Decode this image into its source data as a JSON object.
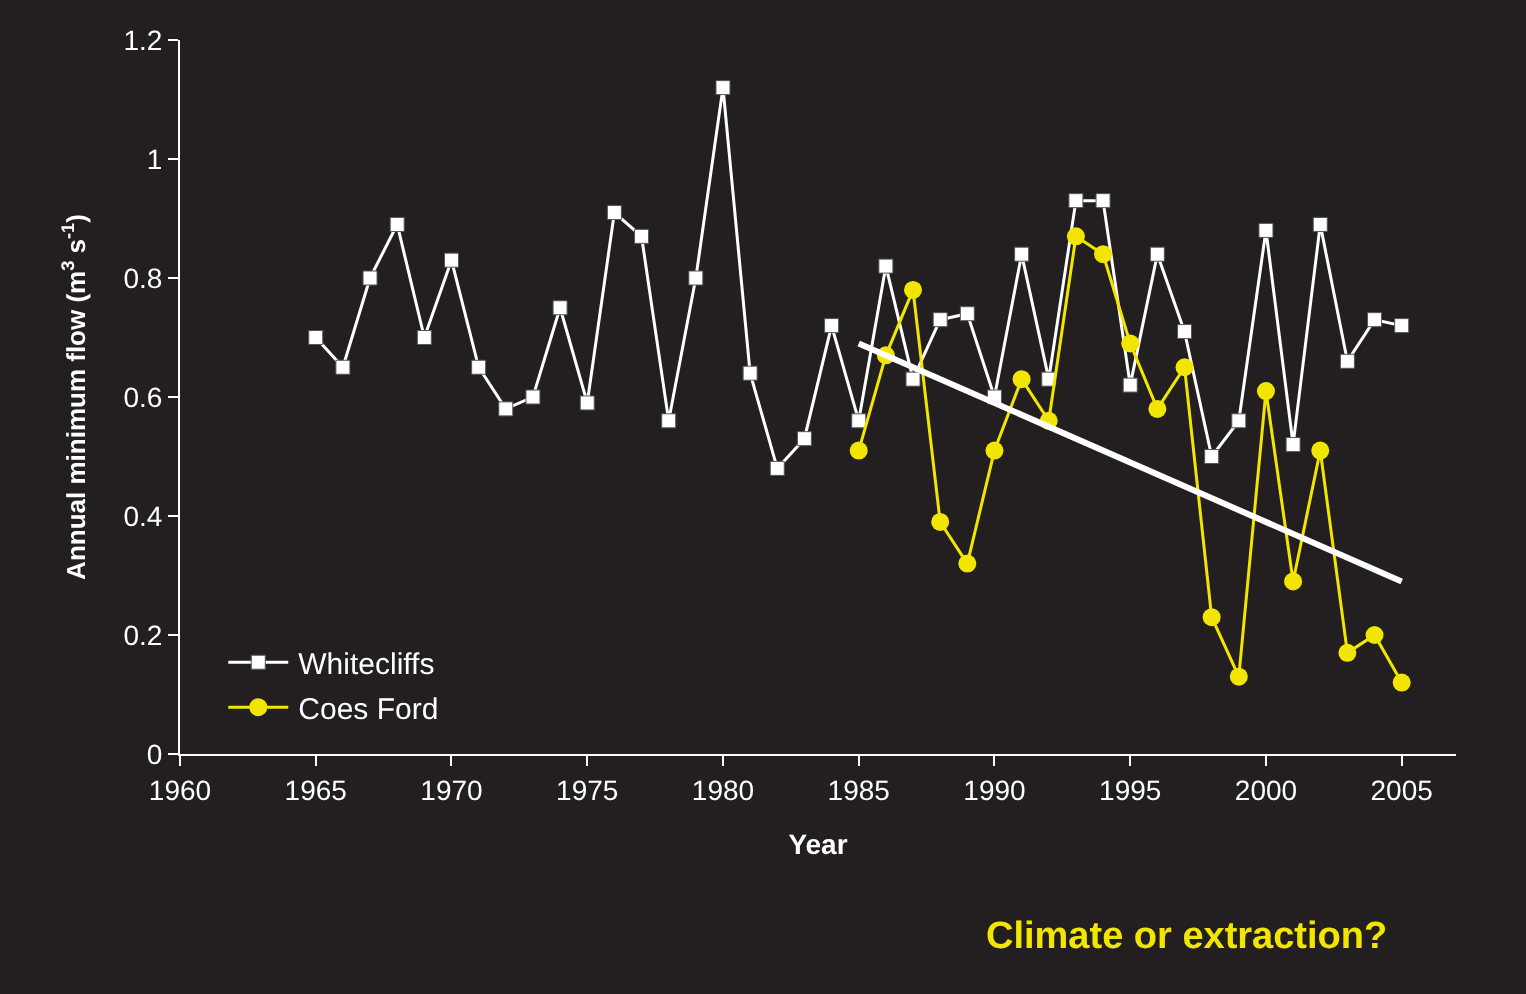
{
  "chart_data": {
    "type": "line",
    "xlabel": "Year",
    "ylabel": "Annual minimum flow (m$^{3}$ s$^{-1}$)",
    "annotations": [
      "Climate or extraction?"
    ],
    "xlim": [
      1960,
      2007
    ],
    "xticks": [
      1960,
      1965,
      1970,
      1975,
      1980,
      1985,
      1990,
      1995,
      2000,
      2005
    ],
    "ylim": [
      0,
      1.2
    ],
    "yticks": [
      0,
      0.2,
      0.4,
      0.6,
      0.8,
      1,
      1.2
    ],
    "grid": false,
    "legend": "bottom left",
    "series": [
      {
        "name": "Whitecliffs",
        "color": "#ffffff",
        "marker": "square",
        "x": [
          1965,
          1966,
          1967,
          1968,
          1969,
          1970,
          1971,
          1972,
          1973,
          1974,
          1975,
          1976,
          1977,
          1978,
          1979,
          1980,
          1981,
          1982,
          1983,
          1984,
          1985,
          1986,
          1987,
          1988,
          1989,
          1990,
          1991,
          1992,
          1993,
          1994,
          1995,
          1996,
          1997,
          1998,
          1999,
          2000,
          2001,
          2002,
          2003,
          2004,
          2005
        ],
        "values": [
          0.7,
          0.65,
          0.8,
          0.89,
          0.7,
          0.83,
          0.65,
          0.58,
          0.6,
          0.75,
          0.59,
          0.91,
          0.87,
          0.56,
          0.8,
          1.12,
          0.64,
          0.48,
          0.53,
          0.72,
          0.56,
          0.82,
          0.63,
          0.73,
          0.74,
          0.6,
          0.84,
          0.63,
          0.93,
          0.93,
          0.62,
          0.84,
          0.71,
          0.5,
          0.56,
          0.88,
          0.52,
          0.89,
          0.66,
          0.73,
          0.72
        ]
      },
      {
        "name": "Coes Ford",
        "color": "#f2e600",
        "marker": "circle",
        "x": [
          1985,
          1986,
          1987,
          1988,
          1989,
          1990,
          1991,
          1992,
          1993,
          1994,
          1995,
          1996,
          1997,
          1998,
          1999,
          2000,
          2001,
          2002,
          2003,
          2004,
          2005
        ],
        "values": [
          0.51,
          0.67,
          0.78,
          0.39,
          0.32,
          0.51,
          0.63,
          0.56,
          0.87,
          0.84,
          0.69,
          0.58,
          0.65,
          0.23,
          0.13,
          0.61,
          0.29,
          0.51,
          0.17,
          0.2,
          0.12
        ]
      },
      {
        "type": "line",
        "color": "#ffffff",
        "marker": "none",
        "x": [
          1985,
          2005
        ],
        "values": [
          0.69,
          0.29
        ]
      }
    ]
  }
}
